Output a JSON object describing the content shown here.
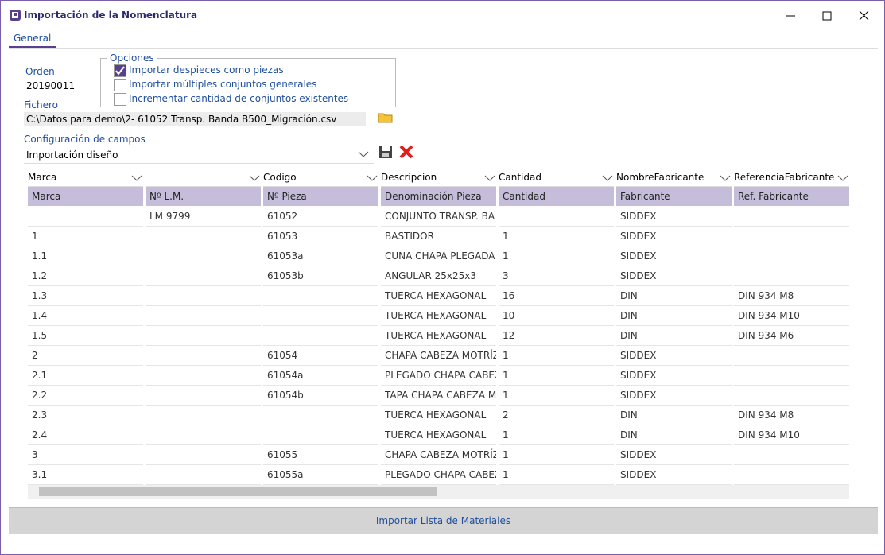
{
  "window": {
    "title": "Importación de la Nomenclatura"
  },
  "tab": "General",
  "orden": {
    "label": "Orden",
    "value": "20190011"
  },
  "opciones": {
    "label": "Opciones",
    "items": [
      {
        "text": "Importar despieces como piezas",
        "checked": true
      },
      {
        "text": "Importar múltiples conjuntos generales",
        "checked": false
      },
      {
        "text": "Incrementar cantidad de conjuntos existentes",
        "checked": false
      }
    ]
  },
  "fichero": {
    "label": "Fichero",
    "value": "C:\\Datos para demo\\2- 61052 Transp. Banda B500_Migración.csv"
  },
  "configuracion": {
    "label": "Configuración de campos",
    "value": "Importación diseño"
  },
  "table": {
    "mapping": [
      "Marca",
      null,
      "Codigo",
      "Descripcion",
      "Cantidad",
      "NombreFabricante",
      "ReferenciaFabricante"
    ],
    "header": [
      "Marca",
      "Nº L.M.",
      "Nº Pieza",
      "Denominación Pieza",
      "Cantidad",
      "Fabricante",
      "Ref. Fabricante"
    ],
    "rows": [
      [
        null,
        "LM 9799",
        "61052",
        "CONJUNTO TRANSP. BA",
        null,
        "SIDDEX",
        null
      ],
      [
        "1",
        null,
        "61053",
        "BASTIDOR",
        "1",
        "SIDDEX",
        null
      ],
      [
        "1.1",
        null,
        "61053a",
        "CUNA CHAPA PLEGADA",
        "1",
        "SIDDEX",
        null
      ],
      [
        "1.2",
        null,
        "61053b",
        "ANGULAR 25x25x3",
        "3",
        "SIDDEX",
        null
      ],
      [
        "1.3",
        null,
        null,
        "TUERCA HEXAGONAL",
        "16",
        "DIN",
        "DIN 934 M8"
      ],
      [
        "1.4",
        null,
        null,
        "TUERCA HEXAGONAL",
        "10",
        "DIN",
        "DIN 934 M10"
      ],
      [
        "1.5",
        null,
        null,
        "TUERCA HEXAGONAL",
        "12",
        "DIN",
        "DIN 934 M6"
      ],
      [
        "2",
        null,
        "61054",
        "CHAPA CABEZA MOTRÍZ",
        "1",
        "SIDDEX",
        null
      ],
      [
        "2.1",
        null,
        "61054a",
        "PLEGADO CHAPA CABEZ",
        "1",
        "SIDDEX",
        null
      ],
      [
        "2.2",
        null,
        "61054b",
        "TAPA CHAPA CABEZA MO",
        "1",
        "SIDDEX",
        null
      ],
      [
        "2.3",
        null,
        null,
        "TUERCA HEXAGONAL",
        "2",
        "DIN",
        "DIN 934 M8"
      ],
      [
        "2.4",
        null,
        null,
        "TUERCA HEXAGONAL",
        "1",
        "DIN",
        "DIN 934 M10"
      ],
      [
        "3",
        null,
        "61055",
        "CHAPA CABEZA MOTRÍZ",
        "1",
        "SIDDEX",
        null
      ],
      [
        "3.1",
        null,
        "61055a",
        "PLEGADO CHAPA CABEZ",
        "1",
        "SIDDEX",
        null
      ]
    ]
  },
  "button": "Importar Lista de Materiales"
}
